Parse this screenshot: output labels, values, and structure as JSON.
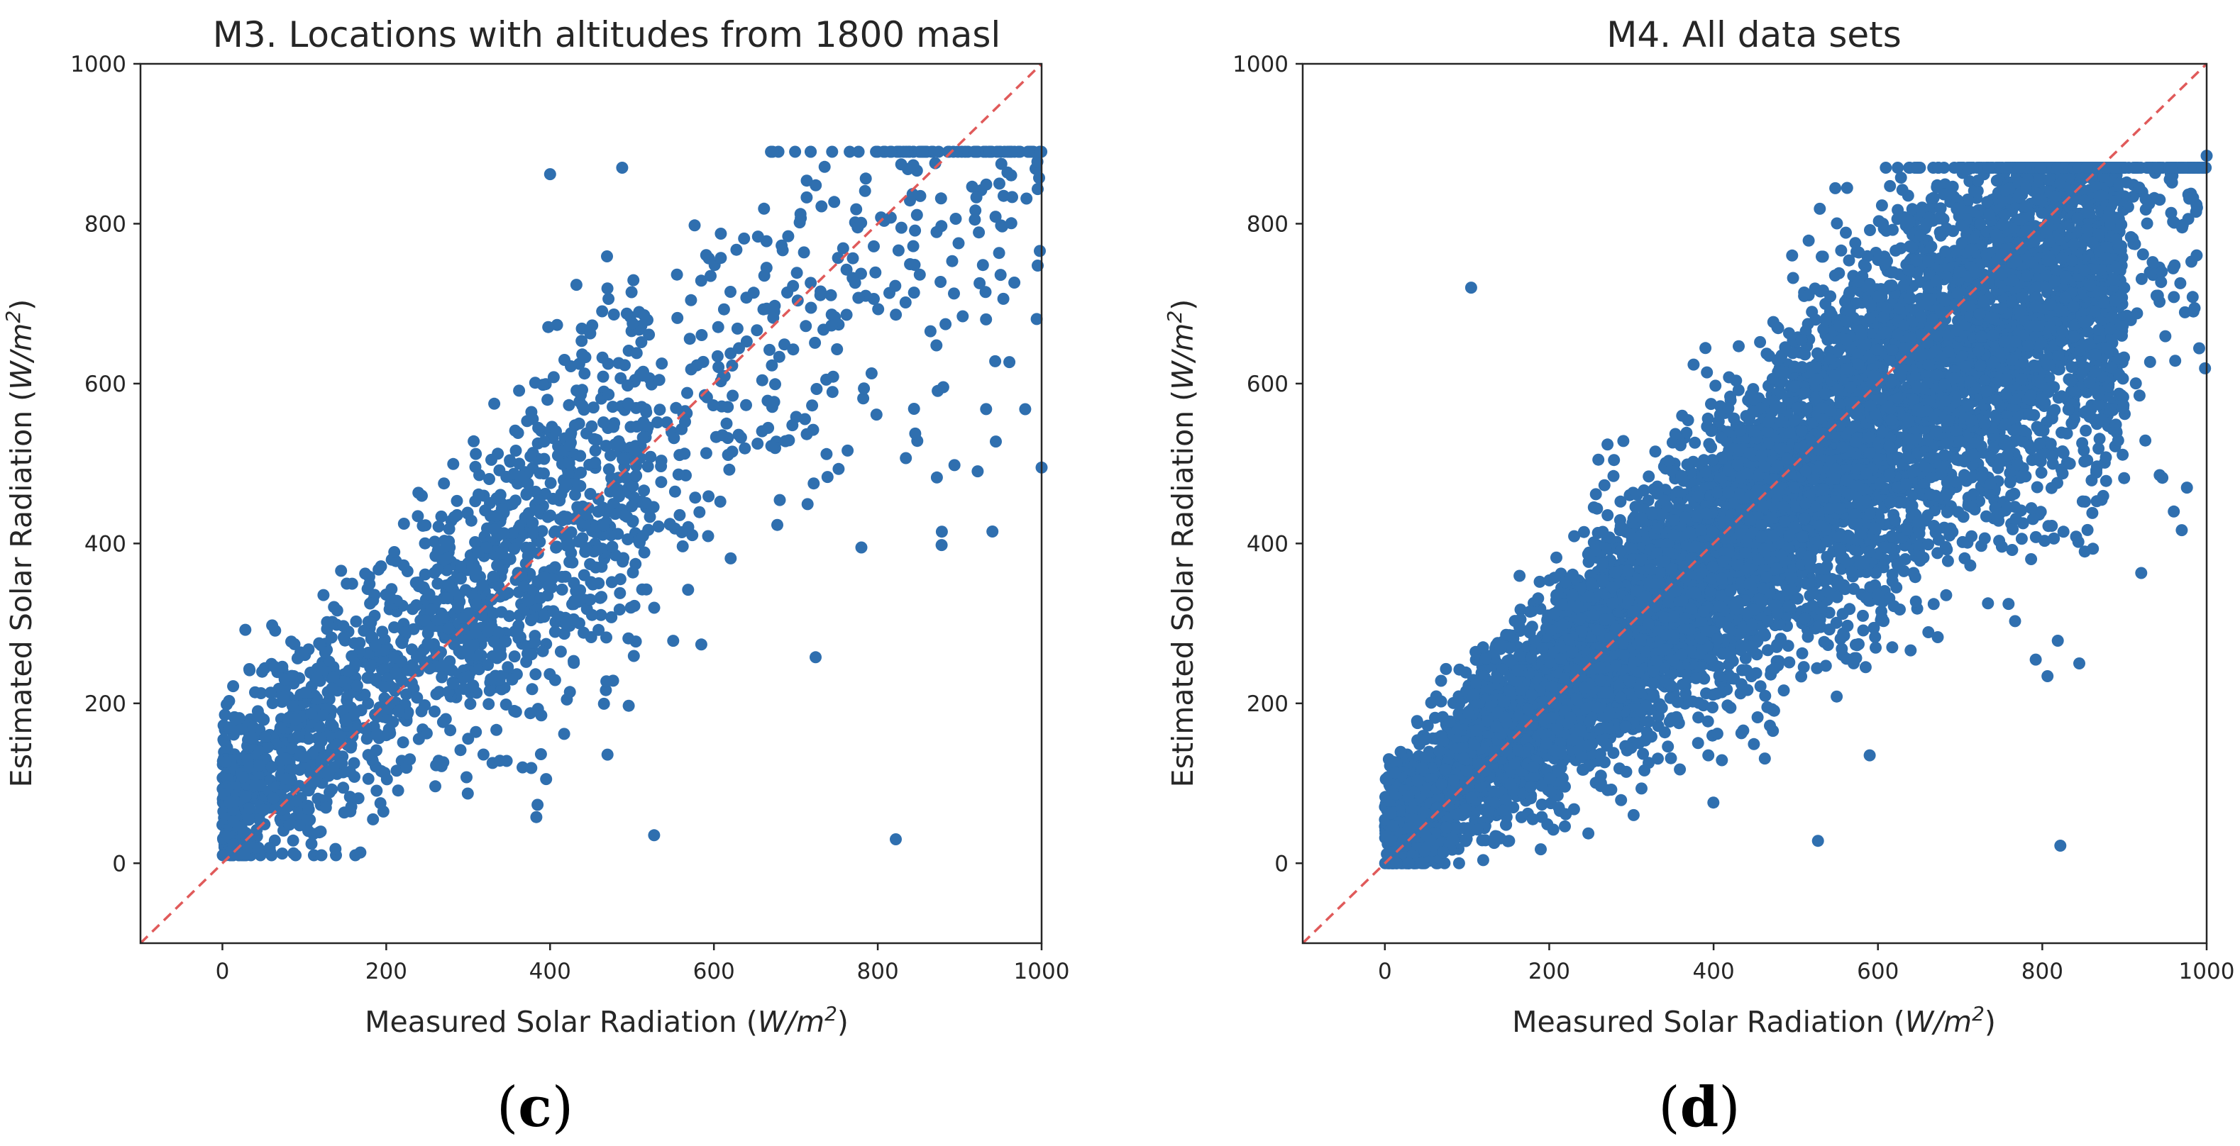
{
  "colors": {
    "point": "#2f6faf",
    "diagonal": "#e05a5a",
    "axis": "#262626",
    "background": "#ffffff"
  },
  "chart_data": [
    {
      "type": "scatter",
      "title": "M3. Locations with altitudes from 1800 masl",
      "xlabel": {
        "text": "Measured Solar Radiation",
        "unit_open": "(",
        "unit_base": "W/m",
        "unit_exp": "2",
        "unit_close": ")"
      },
      "ylabel": {
        "text": "Estimated Solar Radiation",
        "unit_open": "(",
        "unit_base": "W/m",
        "unit_exp": "2",
        "unit_close": ")"
      },
      "xlim": [
        -100,
        1000
      ],
      "ylim": [
        -100,
        1000
      ],
      "xticks": [
        0,
        200,
        400,
        600,
        800,
        1000
      ],
      "yticks": [
        0,
        200,
        400,
        600,
        800,
        1000
      ],
      "reference_line": {
        "style": "dashed",
        "from": [
          -100,
          -100
        ],
        "to": [
          1000,
          1000
        ]
      },
      "caption_open": "(",
      "caption_letter": "c",
      "caption_close": ")",
      "series": {
        "name": "M3",
        "points_notable": [
          [
            527,
            35
          ],
          [
            822,
            30
          ],
          [
            347,
            128
          ],
          [
            400,
            862
          ],
          [
            488,
            870
          ],
          [
            1000,
            495
          ],
          [
            940,
            415
          ],
          [
            980,
            568
          ],
          [
            878,
            398
          ],
          [
            780,
            395
          ],
          [
            28,
            292
          ]
        ],
        "cloud": {
          "n": 1900,
          "x_range": [
            0,
            1000
          ],
          "y_mean_intercept": 75,
          "y_mean_slope": 0.84,
          "y_spread_base": 55,
          "y_spread_slope": 0.12,
          "y_clip": [
            10,
            890
          ],
          "x_distribution": "concentrated 0-450, sparser toward 1000"
        }
      }
    },
    {
      "type": "scatter",
      "title": "M4. All data sets",
      "xlabel": {
        "text": "Measured Solar Radiation",
        "unit_open": "(",
        "unit_base": "W/m",
        "unit_exp": "2",
        "unit_close": ")"
      },
      "ylabel": {
        "text": "Estimated Solar Radiation",
        "unit_open": "(",
        "unit_base": "W/m",
        "unit_exp": "2",
        "unit_close": ")"
      },
      "xlim": [
        -100,
        1000
      ],
      "ylim": [
        -100,
        1000
      ],
      "xticks": [
        0,
        200,
        400,
        600,
        800,
        1000
      ],
      "yticks": [
        0,
        200,
        400,
        600,
        800,
        1000
      ],
      "reference_line": {
        "style": "dashed",
        "from": [
          -100,
          -100
        ],
        "to": [
          1000,
          1000
        ]
      },
      "caption_open": "(",
      "caption_letter": "d",
      "caption_close": ")",
      "series": {
        "name": "M4",
        "points_notable": [
          [
            527,
            28
          ],
          [
            822,
            22
          ],
          [
            105,
            720
          ],
          [
            1000,
            885
          ],
          [
            960,
            440
          ],
          [
            845,
            250
          ],
          [
            590,
            135
          ],
          [
            205,
            42
          ],
          [
            710,
            868
          ],
          [
            930,
            825
          ]
        ],
        "cloud": {
          "n": 9000,
          "x_range": [
            0,
            1000
          ],
          "y_mean_intercept": 40,
          "y_mean_slope": 0.86,
          "y_spread_base": 35,
          "y_spread_slope": 0.13,
          "y_clip": [
            0,
            870
          ],
          "x_distribution": "dense 0-900"
        }
      }
    }
  ]
}
